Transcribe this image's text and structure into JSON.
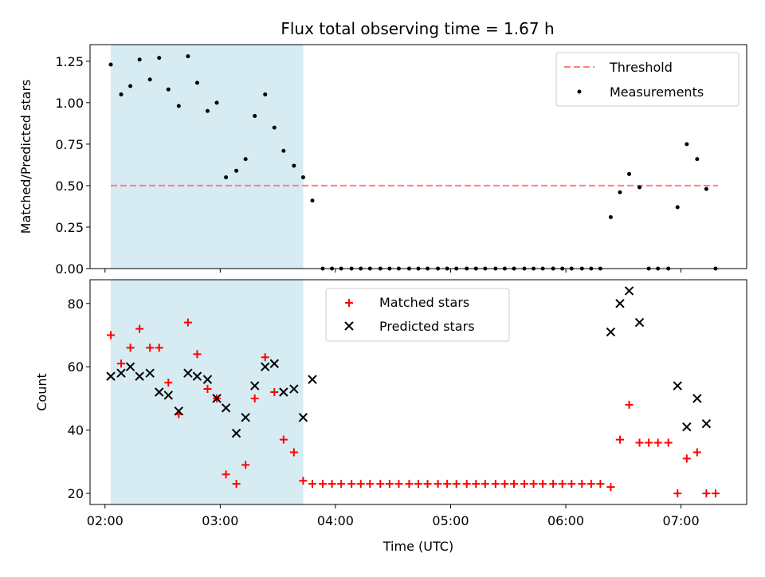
{
  "title": "Flux total observing time = 1.67 h",
  "chart_data": [
    {
      "type": "scatter",
      "ylabel": "Matched/Predicted stars",
      "xlim": [
        1.87,
        7.57
      ],
      "ylim": [
        0,
        1.35
      ],
      "xticks": [
        2,
        3,
        4,
        5,
        6,
        7
      ],
      "yticks": [
        0,
        0.25,
        0.5,
        0.75,
        1.0,
        1.25
      ],
      "ytick_labels": [
        "0.00",
        "0.25",
        "0.50",
        "0.75",
        "1.00",
        "1.25"
      ],
      "legend": {
        "position": "top-right",
        "entries": [
          "Threshold",
          "Measurements"
        ]
      },
      "shaded_region": {
        "x": [
          2.05,
          3.72
        ],
        "color": "#add8e6"
      },
      "threshold": {
        "name": "Threshold",
        "x": [
          2.05,
          7.32
        ],
        "y": 0.5,
        "color": "#ff7f7f"
      },
      "series": [
        {
          "name": "Measurements",
          "color": "#000000",
          "x": [
            2.05,
            2.14,
            2.22,
            2.3,
            2.39,
            2.47,
            2.55,
            2.64,
            2.72,
            2.8,
            2.89,
            2.97,
            3.05,
            3.14,
            3.22,
            3.3,
            3.39,
            3.47,
            3.55,
            3.64,
            3.72,
            3.8,
            3.89,
            3.97,
            4.05,
            4.14,
            4.22,
            4.3,
            4.39,
            4.47,
            4.55,
            4.64,
            4.72,
            4.8,
            4.89,
            4.97,
            5.05,
            5.14,
            5.22,
            5.3,
            5.39,
            5.47,
            5.55,
            5.64,
            5.72,
            5.8,
            5.89,
            5.97,
            6.05,
            6.14,
            6.22,
            6.3,
            6.39,
            6.47,
            6.55,
            6.64,
            6.72,
            6.8,
            6.89,
            6.97,
            7.05,
            7.14,
            7.22,
            7.3
          ],
          "y": [
            1.23,
            1.05,
            1.1,
            1.26,
            1.14,
            1.27,
            1.08,
            0.98,
            1.28,
            1.12,
            0.95,
            1.0,
            0.55,
            0.59,
            0.66,
            0.92,
            1.05,
            0.85,
            0.71,
            0.62,
            0.55,
            0.41,
            0.0,
            0.0,
            0.0,
            0.0,
            0.0,
            0.0,
            0.0,
            0.0,
            0.0,
            0.0,
            0.0,
            0.0,
            0.0,
            0.0,
            0.0,
            0.0,
            0.0,
            0.0,
            0.0,
            0.0,
            0.0,
            0.0,
            0.0,
            0.0,
            0.0,
            0.0,
            0.0,
            0.0,
            0.0,
            0.0,
            0.31,
            0.46,
            0.57,
            0.49,
            0.0,
            0.0,
            0.0,
            0.37,
            0.75,
            0.66,
            0.48,
            0.0
          ]
        }
      ]
    },
    {
      "type": "scatter",
      "xlabel": "Time (UTC)",
      "ylabel": "Count",
      "xlim": [
        1.87,
        7.57
      ],
      "ylim": [
        16.5,
        87.5
      ],
      "xticks": [
        2,
        3,
        4,
        5,
        6,
        7
      ],
      "xtick_labels": [
        "02:00",
        "03:00",
        "04:00",
        "05:00",
        "06:00",
        "07:00"
      ],
      "yticks": [
        20,
        40,
        60,
        80
      ],
      "ytick_labels": [
        "20",
        "40",
        "60",
        "80"
      ],
      "legend": {
        "position": "top-center",
        "entries": [
          "Matched stars",
          "Predicted stars"
        ]
      },
      "shaded_region": {
        "x": [
          2.05,
          3.72
        ],
        "color": "#add8e6"
      },
      "series": [
        {
          "name": "Matched stars",
          "marker": "plus",
          "color": "#ff0000",
          "x": [
            2.05,
            2.14,
            2.22,
            2.3,
            2.39,
            2.47,
            2.55,
            2.64,
            2.72,
            2.8,
            2.89,
            2.97,
            3.05,
            3.14,
            3.22,
            3.3,
            3.39,
            3.47,
            3.55,
            3.64,
            3.72,
            3.8,
            3.89,
            3.97,
            4.05,
            4.14,
            4.22,
            4.3,
            4.39,
            4.47,
            4.55,
            4.64,
            4.72,
            4.8,
            4.89,
            4.97,
            5.05,
            5.14,
            5.22,
            5.3,
            5.39,
            5.47,
            5.55,
            5.64,
            5.72,
            5.8,
            5.89,
            5.97,
            6.05,
            6.14,
            6.22,
            6.3,
            6.39,
            6.47,
            6.55,
            6.64,
            6.72,
            6.8,
            6.89,
            6.97,
            7.05,
            7.14,
            7.22,
            7.3
          ],
          "y": [
            70,
            61,
            66,
            72,
            66,
            66,
            55,
            45,
            74,
            64,
            53,
            50,
            26,
            23,
            29,
            50,
            63,
            52,
            37,
            33,
            24,
            23,
            23,
            23,
            23,
            23,
            23,
            23,
            23,
            23,
            23,
            23,
            23,
            23,
            23,
            23,
            23,
            23,
            23,
            23,
            23,
            23,
            23,
            23,
            23,
            23,
            23,
            23,
            23,
            23,
            23,
            23,
            22,
            37,
            48,
            36,
            36,
            36,
            36,
            20,
            31,
            33,
            20,
            20
          ]
        },
        {
          "name": "Predicted stars",
          "marker": "x",
          "color": "#000000",
          "x": [
            2.05,
            2.14,
            2.22,
            2.3,
            2.39,
            2.47,
            2.55,
            2.64,
            2.72,
            2.8,
            2.89,
            2.97,
            3.05,
            3.14,
            3.22,
            3.3,
            3.39,
            3.47,
            3.55,
            3.64,
            3.72,
            3.8,
            6.39,
            6.47,
            6.55,
            6.64,
            6.97,
            7.05,
            7.14,
            7.22
          ],
          "y": [
            57,
            58,
            60,
            57,
            58,
            52,
            51,
            46,
            58,
            57,
            56,
            50,
            47,
            39,
            44,
            54,
            60,
            61,
            52,
            53,
            44,
            56,
            71,
            80,
            84,
            74,
            54,
            41,
            50,
            42
          ]
        }
      ]
    }
  ]
}
